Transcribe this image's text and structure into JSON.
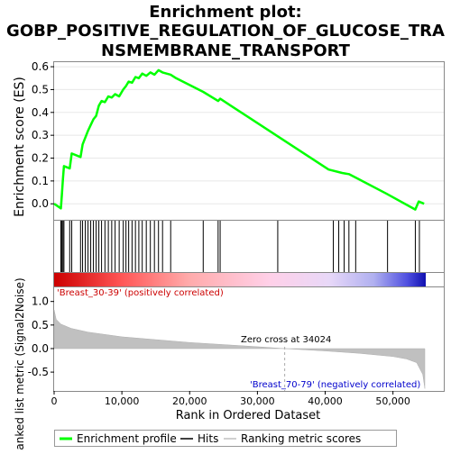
{
  "chart_data": {
    "type": "line",
    "title_lines": [
      "Enrichment plot:",
      "GOBP_POSITIVE_REGULATION_OF_GLUCOSE_TRA",
      "NSMEMBRANE_TRANSPORT"
    ],
    "es_panel": {
      "ylabel": "Enrichment score (ES)",
      "ylim": [
        -0.07,
        0.62
      ],
      "yticks": [
        0.0,
        0.1,
        0.2,
        0.3,
        0.4,
        0.5,
        0.6
      ],
      "ytick_labels": [
        "0.0",
        "0.1",
        "0.2",
        "0.3",
        "0.4",
        "0.5",
        "0.6"
      ],
      "line_color": "#00ff00",
      "series": [
        {
          "x": [
            0,
            1000,
            1150,
            1300,
            1450,
            2300,
            2600,
            3900,
            4200,
            4600,
            5000,
            5400,
            5800,
            6200,
            6600,
            7000,
            7500,
            8000,
            8500,
            9000,
            9600,
            10200,
            10600,
            11000,
            11500,
            12000,
            12500,
            13000,
            13600,
            14200,
            14800,
            15400,
            16000,
            17200,
            18000,
            22000,
            24200,
            24500,
            40500,
            42500,
            43500,
            44500,
            49000,
            53300,
            53800,
            54600
          ],
          "y": [
            0.0,
            -0.02,
            0.04,
            0.11,
            0.165,
            0.155,
            0.22,
            0.205,
            0.26,
            0.29,
            0.32,
            0.345,
            0.37,
            0.385,
            0.43,
            0.45,
            0.445,
            0.47,
            0.465,
            0.48,
            0.47,
            0.5,
            0.515,
            0.535,
            0.53,
            0.555,
            0.55,
            0.57,
            0.56,
            0.575,
            0.565,
            0.585,
            0.575,
            0.565,
            0.55,
            0.49,
            0.45,
            0.46,
            0.15,
            0.135,
            0.13,
            0.115,
            0.045,
            -0.025,
            0.01,
            0.0
          ]
        }
      ]
    },
    "hits": [
      1000,
      1150,
      1300,
      1450,
      2300,
      2600,
      3900,
      4200,
      4600,
      5000,
      5400,
      5800,
      6200,
      6600,
      7000,
      7500,
      8000,
      8500,
      9000,
      9600,
      10200,
      10600,
      11000,
      11500,
      12000,
      12500,
      13000,
      13600,
      14200,
      14800,
      15400,
      16000,
      17200,
      22000,
      24200,
      24500,
      33000,
      41200,
      42000,
      42800,
      43500,
      44500,
      49200,
      53300,
      53900
    ],
    "ranked_panel": {
      "ylabel": "Ranked list metric (Signal2Noise)",
      "ylim": [
        -0.9,
        1.3
      ],
      "yticks": [
        -0.5,
        0.0,
        0.5,
        1.0
      ],
      "ytick_labels": [
        "-0.5",
        "0.0",
        "0.5",
        "1.0"
      ],
      "profile_x": [
        0,
        300,
        1000,
        2500,
        5000,
        10000,
        20000,
        30000,
        34024,
        40000,
        45000,
        50000,
        52000,
        53500,
        54400,
        54700
      ],
      "profile_y": [
        0.82,
        0.62,
        0.52,
        0.43,
        0.35,
        0.25,
        0.13,
        0.04,
        0.0,
        -0.05,
        -0.1,
        -0.17,
        -0.22,
        -0.3,
        -0.55,
        -0.85
      ],
      "positive_label": "'Breast_30-39' (positively correlated)",
      "negative_label": "'Breast_70-79' (negatively correlated)",
      "zero_cross_label": "Zero cross at 34024",
      "zero_cross": 34024
    },
    "xlabel": "Rank in Ordered Dataset",
    "xlim": [
      0,
      57500
    ],
    "xticks": [
      0,
      10000,
      20000,
      30000,
      40000,
      50000
    ],
    "xtick_labels": [
      "0",
      "10,000",
      "20,000",
      "30,000",
      "40,000",
      "50,000"
    ],
    "legend": {
      "placement": "bottom",
      "items": [
        {
          "label": "Enrichment profile",
          "color": "#00ff00"
        },
        {
          "label": "Hits",
          "color": "#000000"
        },
        {
          "label": "Ranking metric scores",
          "color": "#c0c0c0"
        }
      ]
    }
  }
}
